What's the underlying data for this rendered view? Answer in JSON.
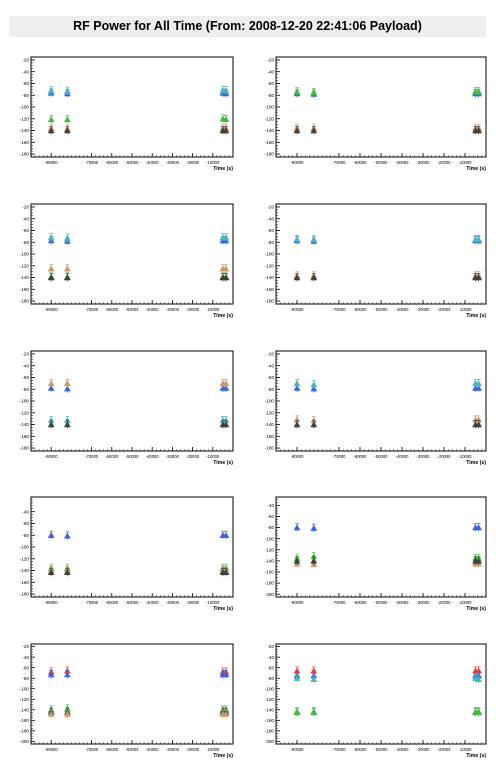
{
  "title": "RF Power for All Time (From: 2008-12-20 22:41:06 Payload)",
  "colors": {
    "red": "#e8403a",
    "green": "#3fbf3f",
    "blue": "#3f63e0",
    "cyan": "#47b8b8",
    "tan": "#c89a6e",
    "darkgray": "#404040"
  },
  "chart_data": [
    {
      "type": "scatter",
      "xlabel": "Time (s)",
      "xlim": [
        -100000,
        0
      ],
      "ylim": [
        -185,
        -15
      ],
      "x_ticks": [
        "-90000",
        "-70000",
        "-60000",
        "-50000",
        "-40000",
        "-30000",
        "-20000",
        "-10000"
      ],
      "y_ticks": [
        "-20",
        "-40",
        "-60",
        "-80",
        "-100",
        "-120",
        "-140",
        "-160",
        "-180"
      ],
      "x_times": [
        -90000,
        -82000,
        -5000,
        -3500
      ],
      "series": [
        {
          "color": "blue",
          "y": [
            -76,
            -77,
            -76,
            -77
          ]
        },
        {
          "color": "cyan",
          "y": [
            -72,
            -73,
            -72,
            -72
          ]
        },
        {
          "color": "green",
          "y": [
            -121,
            -121,
            -120,
            -121
          ]
        },
        {
          "color": "tan",
          "y": [
            -136,
            -137,
            -136,
            -136
          ]
        },
        {
          "color": "darkgray",
          "y": [
            -140,
            -140,
            -140,
            -140
          ]
        }
      ]
    },
    {
      "type": "scatter",
      "xlabel": "Time (s)",
      "xlim": [
        -100000,
        0
      ],
      "ylim": [
        -185,
        -15
      ],
      "x_ticks": [
        "-90000",
        "-70000",
        "-60000",
        "-50000",
        "-40000",
        "-30000",
        "-20000",
        "-10000"
      ],
      "y_ticks": [
        "-20",
        "-40",
        "-60",
        "-80",
        "-100",
        "-120",
        "-140",
        "-160",
        "-180"
      ],
      "x_times": [
        -90000,
        -82000,
        -5000,
        -3500
      ],
      "series": [
        {
          "color": "blue",
          "y": [
            -77,
            -78,
            -77,
            -77
          ]
        },
        {
          "color": "green",
          "y": [
            -74,
            -75,
            -74,
            -74
          ]
        },
        {
          "color": "tan",
          "y": [
            -136,
            -136,
            -136,
            -136
          ]
        },
        {
          "color": "darkgray",
          "y": [
            -140,
            -140,
            -140,
            -140
          ]
        }
      ]
    },
    {
      "type": "scatter",
      "xlabel": "Time (s)",
      "xlim": [
        -100000,
        0
      ],
      "ylim": [
        -185,
        -15
      ],
      "x_ticks": [
        "-90000",
        "-70000",
        "-60000",
        "-50000",
        "-40000",
        "-30000",
        "-20000",
        "-10000"
      ],
      "y_ticks": [
        "-20",
        "-40",
        "-60",
        "-80",
        "-100",
        "-120",
        "-140",
        "-160",
        "-180"
      ],
      "x_times": [
        -90000,
        -82000,
        -5000,
        -3500
      ],
      "series": [
        {
          "color": "blue",
          "y": [
            -77,
            -78,
            -77,
            -77
          ]
        },
        {
          "color": "cyan",
          "y": [
            -72,
            -73,
            -72,
            -72
          ]
        },
        {
          "color": "tan",
          "y": [
            -125,
            -125,
            -125,
            -125
          ]
        },
        {
          "color": "green",
          "y": [
            -139,
            -139,
            -139,
            -139
          ]
        },
        {
          "color": "darkgray",
          "y": [
            -140,
            -140,
            -140,
            -140
          ]
        }
      ]
    },
    {
      "type": "scatter",
      "xlabel": "Time (s)",
      "xlim": [
        -100000,
        0
      ],
      "ylim": [
        -185,
        -15
      ],
      "x_ticks": [
        "-90000",
        "-70000",
        "-60000",
        "-50000",
        "-40000",
        "-30000",
        "-20000",
        "-10000"
      ],
      "y_ticks": [
        "-20",
        "-40",
        "-60",
        "-80",
        "-100",
        "-120",
        "-140",
        "-160",
        "-180"
      ],
      "x_times": [
        -90000,
        -82000,
        -5000,
        -3500
      ],
      "series": [
        {
          "color": "blue",
          "y": [
            -77,
            -78,
            -77,
            -77
          ]
        },
        {
          "color": "cyan",
          "y": [
            -75,
            -75,
            -75,
            -75
          ]
        },
        {
          "color": "tan",
          "y": [
            -137,
            -137,
            -137,
            -137
          ]
        },
        {
          "color": "darkgray",
          "y": [
            -140,
            -140,
            -140,
            -140
          ]
        }
      ]
    },
    {
      "type": "scatter",
      "xlabel": "Time (s)",
      "xlim": [
        -100000,
        0
      ],
      "ylim": [
        -185,
        -15
      ],
      "x_ticks": [
        "-90000",
        "-70000",
        "-60000",
        "-50000",
        "-40000",
        "-30000",
        "-20000",
        "-10000"
      ],
      "y_ticks": [
        "-20",
        "-40",
        "-60",
        "-80",
        "-100",
        "-120",
        "-140",
        "-160",
        "-180"
      ],
      "x_times": [
        -90000,
        -82000,
        -5000,
        -3500
      ],
      "series": [
        {
          "color": "blue",
          "y": [
            -78,
            -79,
            -78,
            -78
          ]
        },
        {
          "color": "tan",
          "y": [
            -70,
            -70,
            -70,
            -70
          ]
        },
        {
          "color": "cyan",
          "y": [
            -133,
            -133,
            -133,
            -133
          ]
        },
        {
          "color": "darkgray",
          "y": [
            -140,
            -140,
            -140,
            -140
          ]
        }
      ]
    },
    {
      "type": "scatter",
      "xlabel": "Time (s)",
      "xlim": [
        -100000,
        0
      ],
      "ylim": [
        -185,
        -15
      ],
      "x_ticks": [
        "-90000",
        "-70000",
        "-60000",
        "-50000",
        "-40000",
        "-30000",
        "-20000",
        "-10000"
      ],
      "y_ticks": [
        "-20",
        "-40",
        "-60",
        "-80",
        "-100",
        "-120",
        "-140",
        "-160",
        "-180"
      ],
      "x_times": [
        -90000,
        -82000,
        -5000,
        -3500
      ],
      "series": [
        {
          "color": "blue",
          "y": [
            -78,
            -79,
            -78,
            -78
          ]
        },
        {
          "color": "cyan",
          "y": [
            -70,
            -72,
            -70,
            -70
          ]
        },
        {
          "color": "tan",
          "y": [
            -132,
            -133,
            -132,
            -132
          ]
        },
        {
          "color": "darkgray",
          "y": [
            -140,
            -140,
            -140,
            -140
          ]
        }
      ]
    },
    {
      "type": "scatter",
      "xlabel": "Time (s)",
      "xlim": [
        -100000,
        0
      ],
      "ylim": [
        -185,
        -15
      ],
      "x_ticks": [
        "-90000",
        "-70000",
        "-60000",
        "-50000",
        "-40000",
        "-30000",
        "-20000",
        "-10000"
      ],
      "y_ticks": [
        "-40",
        "-60",
        "-80",
        "-100",
        "-120",
        "-140",
        "-160",
        "-180"
      ],
      "x_times": [
        -90000,
        -82000,
        -5000,
        -3500
      ],
      "series": [
        {
          "color": "blue",
          "y": [
            -80,
            -81,
            -80,
            -80
          ]
        },
        {
          "color": "green",
          "y": [
            -136,
            -136,
            -136,
            -136
          ]
        },
        {
          "color": "tan",
          "y": [
            -140,
            -140,
            -140,
            -140
          ]
        },
        {
          "color": "darkgray",
          "y": [
            -143,
            -143,
            -143,
            -143
          ]
        }
      ]
    },
    {
      "type": "scatter",
      "xlabel": "Time (s)",
      "xlim": [
        -100000,
        0
      ],
      "ylim": [
        -205,
        -25
      ],
      "x_ticks": [
        "-90000",
        "-70000",
        "-60000",
        "-50000",
        "-40000",
        "-30000",
        "-20000",
        "-10000"
      ],
      "y_ticks": [
        "-40",
        "-60",
        "-80",
        "-100",
        "-120",
        "-140",
        "-160",
        "-180",
        "-200"
      ],
      "x_times": [
        -90000,
        -82000,
        -5000,
        -3500
      ],
      "series": [
        {
          "color": "blue",
          "y": [
            -80,
            -81,
            -80,
            -80
          ]
        },
        {
          "color": "green",
          "y": [
            -135,
            -132,
            -135,
            -135
          ]
        },
        {
          "color": "tan",
          "y": [
            -145,
            -146,
            -145,
            -145
          ]
        },
        {
          "color": "darkgray",
          "y": [
            -140,
            -140,
            -140,
            -140
          ]
        }
      ]
    },
    {
      "type": "scatter",
      "xlabel": "Time (s)",
      "xlim": [
        -100000,
        0
      ],
      "ylim": [
        -205,
        -15
      ],
      "x_ticks": [
        "-90000",
        "-70000",
        "-60000",
        "-50000",
        "-40000",
        "-30000",
        "-20000",
        "-10000"
      ],
      "y_ticks": [
        "-20",
        "-40",
        "-60",
        "-80",
        "-100",
        "-120",
        "-140",
        "-160",
        "-180",
        "-200"
      ],
      "x_times": [
        -90000,
        -82000,
        -5000,
        -3500
      ],
      "series": [
        {
          "color": "red",
          "y": [
            -68,
            -66,
            -68,
            -68
          ]
        },
        {
          "color": "blue",
          "y": [
            -73,
            -73,
            -73,
            -73
          ]
        },
        {
          "color": "green",
          "y": [
            -140,
            -138,
            -140,
            -140
          ]
        },
        {
          "color": "darkgray",
          "y": [
            -144,
            -144,
            -144,
            -144
          ]
        },
        {
          "color": "tan",
          "y": [
            -148,
            -148,
            -148,
            -148
          ]
        }
      ]
    },
    {
      "type": "scatter",
      "xlabel": "Time (s)",
      "xlim": [
        -100000,
        0
      ],
      "ylim": [
        -205,
        -15
      ],
      "x_ticks": [
        "-90000",
        "-70000",
        "-60000",
        "-50000",
        "-40000",
        "-30000",
        "-20000",
        "-10000"
      ],
      "y_ticks": [
        "-20",
        "-40",
        "-60",
        "-80",
        "-100",
        "-120",
        "-140",
        "-160",
        "-180",
        "-200"
      ],
      "x_times": [
        -90000,
        -82000,
        -5000,
        -3500
      ],
      "series": [
        {
          "color": "red",
          "y": [
            -66,
            -66,
            -66,
            -66
          ]
        },
        {
          "color": "blue",
          "y": [
            -75,
            -75,
            -75,
            -75
          ]
        },
        {
          "color": "cyan",
          "y": [
            -80,
            -82,
            -80,
            -82
          ]
        },
        {
          "color": "darkgray",
          "y": [
            -144,
            -144,
            -144,
            -144
          ]
        },
        {
          "color": "green",
          "y": [
            -145,
            -145,
            -145,
            -145
          ]
        }
      ]
    }
  ]
}
